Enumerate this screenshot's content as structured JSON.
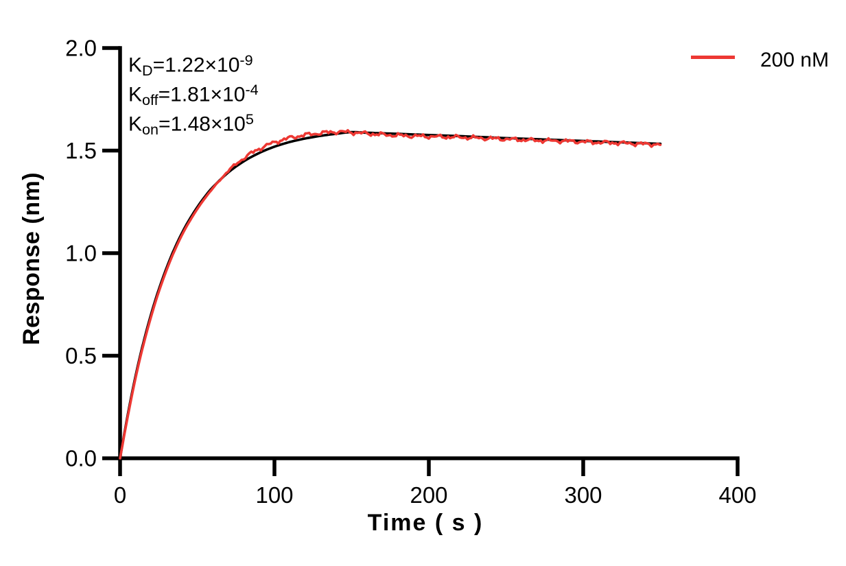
{
  "chart_data": {
    "type": "line",
    "title": "",
    "xlabel": "Time ( s )",
    "ylabel": "Response (nm)",
    "xlim": [
      0,
      400
    ],
    "ylim": [
      0.0,
      2.0
    ],
    "xticks": {
      "values": [
        0,
        100,
        200,
        300,
        400
      ],
      "labels": [
        "0",
        "100",
        "200",
        "300",
        "400"
      ]
    },
    "yticks": {
      "values": [
        0.0,
        0.5,
        1.0,
        1.5,
        2.0
      ],
      "labels": [
        "0.0",
        "0.5",
        "1.0",
        "1.5",
        "2.0"
      ]
    },
    "grid": false,
    "legend_position": "top-right",
    "legend": [
      {
        "label": "200 nM",
        "color": "#ED3833"
      }
    ],
    "kinetics": {
      "KD": 1.22e-09,
      "Koff": 0.000181,
      "Kon": 148000.0
    },
    "annotations": [
      {
        "base": "K",
        "sub": "D",
        "mid": "=1.22×10",
        "sup": "-9"
      },
      {
        "base": "K",
        "sub": "off",
        "mid": "=1.81×10",
        "sup": "-4"
      },
      {
        "base": "K",
        "sub": "on",
        "mid": "=1.48×10",
        "sup": "5"
      }
    ],
    "series": [
      {
        "name": "fit",
        "color": "#000000",
        "width": 3.6,
        "noisy": false,
        "points": [
          [
            0,
            0
          ],
          [
            5,
            0.214
          ],
          [
            10,
            0.4
          ],
          [
            15,
            0.561
          ],
          [
            20,
            0.7
          ],
          [
            25,
            0.821
          ],
          [
            30,
            0.926
          ],
          [
            35,
            1.018
          ],
          [
            40,
            1.097
          ],
          [
            45,
            1.165
          ],
          [
            50,
            1.224
          ],
          [
            55,
            1.276
          ],
          [
            60,
            1.321
          ],
          [
            70,
            1.393
          ],
          [
            80,
            1.447
          ],
          [
            90,
            1.488
          ],
          [
            100,
            1.519
          ],
          [
            110,
            1.542
          ],
          [
            120,
            1.559
          ],
          [
            130,
            1.572
          ],
          [
            140,
            1.582
          ],
          [
            150,
            1.59
          ],
          [
            160,
            1.587
          ],
          [
            175,
            1.583
          ],
          [
            200,
            1.576
          ],
          [
            225,
            1.569
          ],
          [
            250,
            1.561
          ],
          [
            275,
            1.554
          ],
          [
            300,
            1.547
          ],
          [
            325,
            1.54
          ],
          [
            350,
            1.533
          ]
        ]
      },
      {
        "name": "data 200 nM",
        "color": "#ED3833",
        "width": 3.6,
        "noisy": true,
        "points": [
          [
            0,
            0
          ],
          [
            5,
            0.205
          ],
          [
            10,
            0.39
          ],
          [
            15,
            0.55
          ],
          [
            20,
            0.688
          ],
          [
            25,
            0.81
          ],
          [
            30,
            0.915
          ],
          [
            35,
            1.007
          ],
          [
            40,
            1.087
          ],
          [
            45,
            1.155
          ],
          [
            50,
            1.215
          ],
          [
            55,
            1.268
          ],
          [
            60,
            1.315
          ],
          [
            70,
            1.4
          ],
          [
            80,
            1.462
          ],
          [
            90,
            1.508
          ],
          [
            100,
            1.54
          ],
          [
            110,
            1.562
          ],
          [
            120,
            1.576
          ],
          [
            130,
            1.585
          ],
          [
            140,
            1.591
          ],
          [
            150,
            1.589
          ],
          [
            160,
            1.583
          ],
          [
            170,
            1.578
          ],
          [
            180,
            1.574
          ],
          [
            190,
            1.571
          ],
          [
            200,
            1.569
          ],
          [
            210,
            1.567
          ],
          [
            220,
            1.565
          ],
          [
            230,
            1.562
          ],
          [
            240,
            1.559
          ],
          [
            250,
            1.556
          ],
          [
            260,
            1.553
          ],
          [
            270,
            1.55
          ],
          [
            280,
            1.548
          ],
          [
            290,
            1.546
          ],
          [
            300,
            1.543
          ],
          [
            310,
            1.54
          ],
          [
            320,
            1.538
          ],
          [
            330,
            1.535
          ],
          [
            340,
            1.532
          ],
          [
            350,
            1.53
          ]
        ]
      }
    ]
  }
}
